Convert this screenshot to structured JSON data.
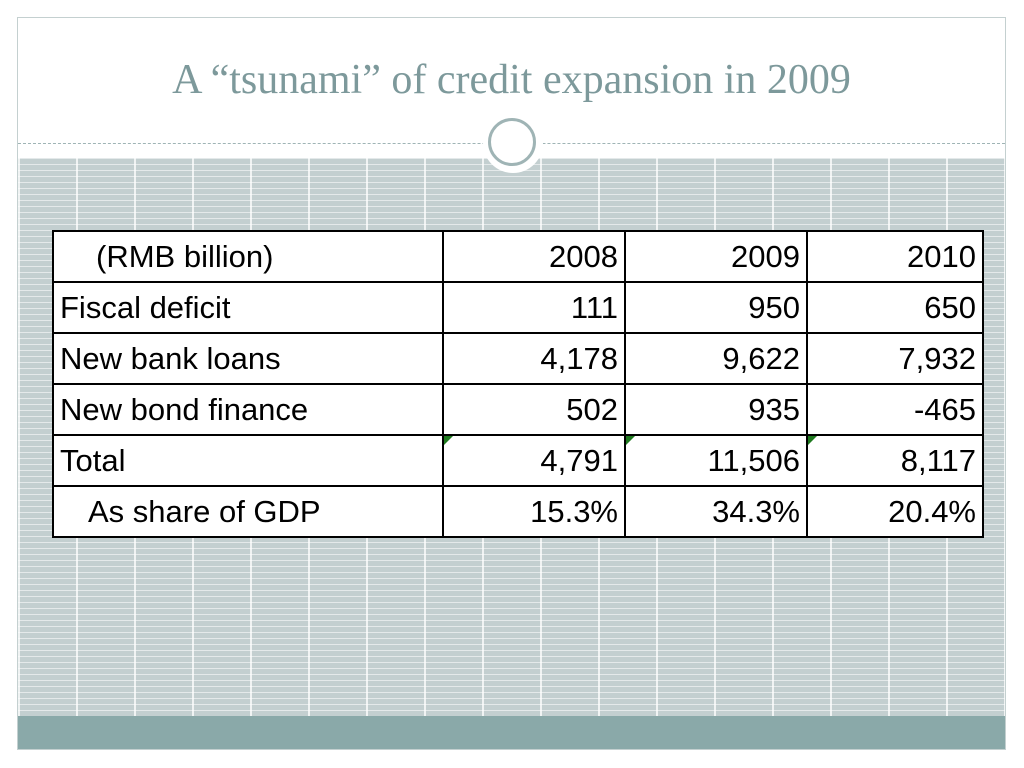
{
  "slide": {
    "title": "A “tsunami” of credit expansion in 2009"
  },
  "table": {
    "header": [
      "(RMB billion)",
      "2008",
      "2009",
      "2010"
    ],
    "rows": [
      {
        "label": "Fiscal deficit",
        "values": [
          "111",
          "950",
          "650"
        ]
      },
      {
        "label": "New bank loans",
        "values": [
          "4,178",
          "9,622",
          "7,932"
        ]
      },
      {
        "label": "New bond finance",
        "values": [
          "502",
          "935",
          "-465"
        ]
      },
      {
        "label": "Total",
        "values": [
          "4,791",
          "11,506",
          "8,117"
        ]
      },
      {
        "label": "As share of GDP",
        "values": [
          "15.3%",
          "34.3%",
          "20.4%"
        ]
      }
    ]
  },
  "colors": {
    "title": "#7d999b",
    "footer": "#8aa9a9",
    "grid_background": "#c3cfd0",
    "error_flag": "#1f7a1f"
  }
}
